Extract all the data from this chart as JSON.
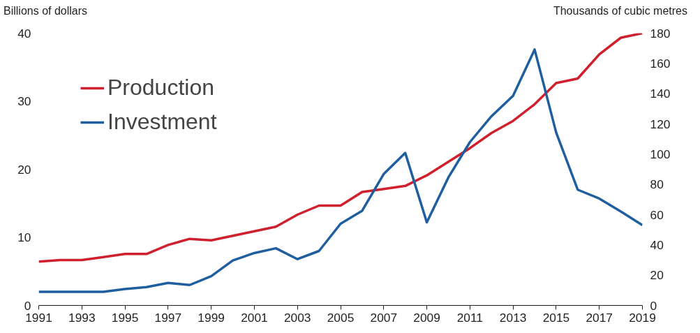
{
  "chart_data": {
    "type": "line",
    "ylabel": "Billions of dollars",
    "y2label": "Thousands of cubic metres",
    "x": [
      1991,
      1992,
      1993,
      1994,
      1995,
      1996,
      1997,
      1998,
      1999,
      2000,
      2001,
      2002,
      2003,
      2004,
      2005,
      2006,
      2007,
      2008,
      2009,
      2010,
      2011,
      2012,
      2013,
      2014,
      2015,
      2016,
      2017,
      2018,
      2019
    ],
    "series": [
      {
        "name": "Production",
        "color": "#d0202e",
        "axis": "y2",
        "values": [
          29,
          30,
          30,
          32,
          34,
          34,
          40,
          44,
          43,
          46,
          49,
          52,
          60,
          66,
          66,
          75,
          77,
          79,
          86,
          95,
          104,
          114,
          122,
          133,
          147,
          150,
          166,
          177,
          180
        ]
      },
      {
        "name": "Investment",
        "color": "#1f5fa0",
        "values": [
          2.0,
          2.0,
          2.0,
          2.0,
          2.4,
          2.7,
          3.3,
          3.0,
          4.3,
          6.6,
          7.7,
          8.4,
          6.8,
          8.0,
          12.0,
          13.9,
          19.3,
          22.4,
          12.2,
          18.8,
          24.0,
          27.8,
          30.8,
          37.6,
          25.4,
          17.0,
          15.7,
          13.8,
          11.8
        ]
      }
    ],
    "xlim": [
      1991,
      2019
    ],
    "xticks": [
      1991,
      1993,
      1995,
      1997,
      1999,
      2001,
      2003,
      2005,
      2007,
      2009,
      2011,
      2013,
      2015,
      2017,
      2019
    ],
    "ylim": [
      0,
      40
    ],
    "yticks": [
      0,
      10,
      20,
      30,
      40
    ],
    "y2lim": [
      0,
      180
    ],
    "y2ticks": [
      0,
      20,
      40,
      60,
      80,
      100,
      120,
      140,
      160,
      180
    ],
    "grid": false,
    "legend": "top left",
    "line_style": "solid",
    "marker": "none"
  }
}
